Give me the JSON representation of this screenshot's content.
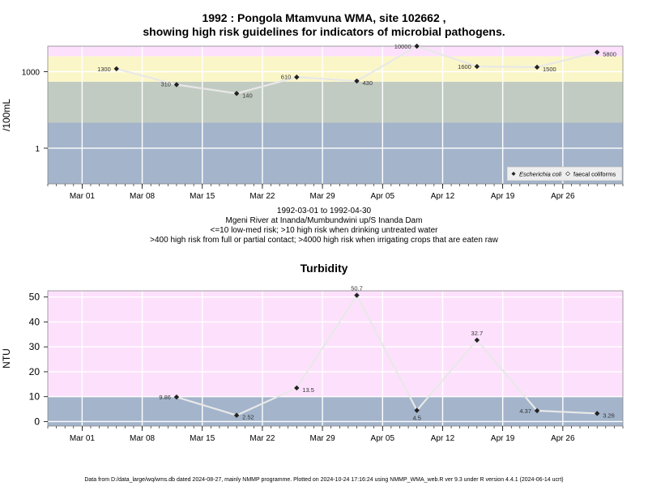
{
  "chart1_title_line1": "1992 : Pongola Mtamvuna WMA, site 102662 ,",
  "chart1_title_line2": "showing high risk guidelines for indicators of microbial pathogens.",
  "caption_lines": [
    "1992-03-01 to 1992-04-30",
    "Mgeni River at Inanda/Mumbundwini up/S Inanda Dam",
    "<=10 low-med risk; >10 high risk when drinking untreated water",
    ">400 high risk from full or partial contact; >4000 high risk when irrigating crops that are eaten raw"
  ],
  "chart2_title": "Turbidity",
  "footer": "Data from D:/data_large/wq/wms.db dated 2024-08-27, mainly NMMP programme. Plotted on 2024-10-24 17:16:24 using NMMP_WMA_web.R ver 9.3 under R version 4.4.1 (2024-06-14 ucrt)",
  "colors": {
    "pink": "#fde1fc",
    "yellow": "#fbf6c8",
    "green": "#c2cbc2",
    "blue": "#a3b4cb",
    "line": "#e8e8e8",
    "grid": "#ffffff",
    "frame": "#888888"
  },
  "chart_data": [
    {
      "type": "line",
      "ylabel": "/100mL",
      "yscale": "log",
      "yticks": [
        1,
        1000
      ],
      "ylim": [
        0.04,
        10000
      ],
      "xticks": [
        "Mar 01",
        "Mar 08",
        "Mar 15",
        "Mar 22",
        "Mar 29",
        "Apr 05",
        "Apr 12",
        "Apr 19",
        "Apr 26"
      ],
      "xtick_dates": [
        "1992-03-01",
        "1992-03-08",
        "1992-03-15",
        "1992-03-22",
        "1992-03-29",
        "1992-04-05",
        "1992-04-12",
        "1992-04-19",
        "1992-04-26"
      ],
      "xlim": [
        "1992-02-26",
        "1992-05-03"
      ],
      "bands": [
        {
          "from": 4000,
          "to": 10000,
          "color": "pink"
        },
        {
          "from": 400,
          "to": 4000,
          "color": "yellow"
        },
        {
          "from": 10,
          "to": 400,
          "color": "green"
        },
        {
          "from": 0.04,
          "to": 10,
          "color": "blue"
        }
      ],
      "legend": {
        "position": "bottom-right",
        "entries": [
          "Escherichia coli",
          "faecal coliforms"
        ]
      },
      "series": [
        {
          "name": "Escherichia coli",
          "points": [
            {
              "date": "1992-03-05",
              "value": 1300,
              "label": "1300",
              "labelSide": "left"
            },
            {
              "date": "1992-03-12",
              "value": 310,
              "label": "310",
              "labelSide": "left"
            },
            {
              "date": "1992-03-19",
              "value": 140,
              "label": "140",
              "labelSide": "right"
            },
            {
              "date": "1992-03-26",
              "value": 610,
              "label": "610",
              "labelSide": "left"
            },
            {
              "date": "1992-04-02",
              "value": 430,
              "label": "430",
              "labelSide": "right"
            },
            {
              "date": "1992-04-09",
              "value": 10000,
              "label": "10000",
              "labelSide": "left"
            },
            {
              "date": "1992-04-16",
              "value": 1600,
              "label": "1600",
              "labelSide": "left"
            },
            {
              "date": "1992-04-23",
              "value": 1500,
              "label": "1500",
              "labelSide": "right"
            },
            {
              "date": "1992-04-30",
              "value": 5800,
              "label": "5800",
              "labelSide": "right"
            }
          ]
        }
      ]
    },
    {
      "type": "line",
      "title": "Turbidity",
      "ylabel": "NTU",
      "yscale": "linear",
      "yticks": [
        0,
        10,
        20,
        30,
        40,
        50
      ],
      "ylim": [
        -1.8,
        52.5
      ],
      "xticks": [
        "Mar 01",
        "Mar 08",
        "Mar 15",
        "Mar 22",
        "Mar 29",
        "Apr 05",
        "Apr 12",
        "Apr 19",
        "Apr 26"
      ],
      "xtick_dates": [
        "1992-03-01",
        "1992-03-08",
        "1992-03-15",
        "1992-03-22",
        "1992-03-29",
        "1992-04-05",
        "1992-04-12",
        "1992-04-19",
        "1992-04-26"
      ],
      "xlim": [
        "1992-02-26",
        "1992-05-03"
      ],
      "bands": [
        {
          "from": 10,
          "to": 52.5,
          "color": "pink"
        },
        {
          "from": -1.8,
          "to": 10,
          "color": "blue"
        }
      ],
      "series": [
        {
          "name": "",
          "points": [
            {
              "date": "1992-03-12",
              "value": 9.86,
              "label": "9.86",
              "labelSide": "left"
            },
            {
              "date": "1992-03-19",
              "value": 2.52,
              "label": "2.52",
              "labelSide": "right"
            },
            {
              "date": "1992-03-26",
              "value": 13.5,
              "label": "13.5",
              "labelSide": "right"
            },
            {
              "date": "1992-04-02",
              "value": 50.7,
              "label": "50.7",
              "labelSide": "above"
            },
            {
              "date": "1992-04-09",
              "value": 4.5,
              "label": "4.5",
              "labelSide": "below"
            },
            {
              "date": "1992-04-16",
              "value": 32.7,
              "label": "32.7",
              "labelSide": "above"
            },
            {
              "date": "1992-04-23",
              "value": 4.37,
              "label": "4.37",
              "labelSide": "left"
            },
            {
              "date": "1992-04-30",
              "value": 3.26,
              "label": "3.26",
              "labelSide": "right"
            }
          ]
        }
      ]
    }
  ]
}
